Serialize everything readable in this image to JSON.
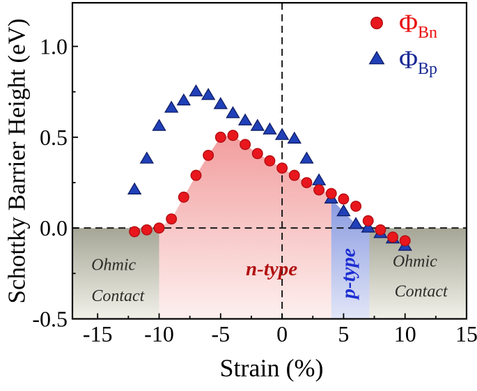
{
  "chart_data": {
    "type": "scatter",
    "title": "",
    "xlabel": "Strain (%)",
    "ylabel": "Schottky Barrier Height (eV)",
    "xlim": [
      -17.05,
      15
    ],
    "ylim": [
      -0.5,
      1.24
    ],
    "grid": false,
    "legend_position": "top-right",
    "x": [
      -12,
      -11,
      -10,
      -9,
      -8,
      -7,
      -6,
      -5,
      -4,
      -3,
      -2,
      -1,
      0,
      1,
      2,
      3,
      4,
      5,
      6,
      7,
      8,
      9,
      10
    ],
    "series": [
      {
        "name": "Phi_Bn",
        "legend_symbol": "Φ",
        "legend_subscript": "Bn",
        "marker": "circle",
        "fill": "#e8171d",
        "edge": "#b00b10",
        "legend_text_color": "#e8100f",
        "values": [
          -0.02,
          -0.01,
          0.0,
          0.05,
          0.17,
          0.29,
          0.4,
          0.5,
          0.51,
          0.46,
          0.41,
          0.37,
          0.33,
          0.29,
          0.25,
          0.21,
          0.19,
          0.16,
          0.12,
          0.04,
          -0.01,
          -0.05,
          -0.07
        ]
      },
      {
        "name": "Phi_Bp",
        "legend_symbol": "Φ",
        "legend_subscript": "Bp",
        "marker": "triangle",
        "fill": "#2040b8",
        "edge": "#0e1d66",
        "legend_text_color": "#1b2b96",
        "values": [
          0.21,
          0.38,
          0.56,
          0.66,
          0.7,
          0.75,
          0.73,
          0.68,
          0.63,
          0.59,
          0.56,
          0.54,
          0.51,
          0.49,
          0.38,
          0.26,
          0.16,
          0.09,
          0.02,
          0.0,
          -0.03,
          -0.06,
          -0.1
        ]
      }
    ],
    "x_axis": {
      "major_ticks": [
        -15,
        -10,
        -5,
        0,
        5,
        10,
        15
      ],
      "major_labels": [
        "-15",
        "-10",
        "-5",
        "0",
        "5",
        "10",
        "15"
      ],
      "minor_ticks": [
        -12.5,
        -7.5,
        -2.5,
        2.5,
        7.5,
        12.5
      ]
    },
    "y_axis": {
      "major_ticks": [
        1.0,
        0.5,
        0.0,
        -0.5
      ],
      "major_labels": [
        "1.0",
        "0.5",
        "0.0",
        "-0.5"
      ],
      "minor_ticks": [
        0.75,
        0.25,
        -0.25
      ]
    },
    "reference_lines": [
      {
        "axis": "x",
        "value": 0
      },
      {
        "axis": "y",
        "value": 0
      }
    ],
    "regions": [
      {
        "id": "ohmic-left",
        "kind": "rect",
        "x0": -17.05,
        "x1": -10,
        "y0": -0.5,
        "y1": 0,
        "fill_top": "#a6a697",
        "fill_bottom": "#f1f1e9"
      },
      {
        "id": "n-type",
        "kind": "under-curve",
        "series": 0,
        "from": -10,
        "to": 4,
        "extra": [
          [
            4,
            -0.5
          ],
          [
            -10,
            -0.5
          ]
        ],
        "fill_top": "#f29e9e",
        "fill_bottom": "#fdf0ef"
      },
      {
        "id": "p-type",
        "kind": "under-curve",
        "series": 1,
        "from": 4,
        "to": 7,
        "extra": [
          [
            7.1,
            0
          ],
          [
            7.1,
            -0.5
          ],
          [
            4,
            -0.5
          ]
        ],
        "fill_top": "#8899e0",
        "fill_bottom": "#e2e6f7"
      },
      {
        "id": "ohmic-right",
        "kind": "rect",
        "x0": 7.1,
        "x1": 15,
        "y0": -0.5,
        "y1": 0,
        "fill_top": "#a6a697",
        "fill_bottom": "#f1f1e9"
      }
    ],
    "annotations": [
      {
        "id": "n-type-label",
        "text": "n-type",
        "x": -0.85,
        "y": -0.225,
        "color": "#b11111",
        "size": 29,
        "bold": true,
        "italic": true,
        "rotate": 0
      },
      {
        "id": "p-type-label",
        "text": "p-type",
        "x": 5.4,
        "y": -0.25,
        "color": "#1c2ed2",
        "size": 29,
        "bold": true,
        "italic": true,
        "rotate": -90
      },
      {
        "id": "ohmic-left-line1",
        "text": "Ohmic",
        "x": -13.7,
        "y": -0.205,
        "color": "#2c2c28",
        "size": 24,
        "bold": false,
        "italic": true,
        "rotate": 0
      },
      {
        "id": "ohmic-left-line2",
        "text": "Contact",
        "x": -13.35,
        "y": -0.375,
        "color": "#2c2c28",
        "size": 24,
        "bold": false,
        "italic": true,
        "rotate": 0
      },
      {
        "id": "ohmic-right-line1",
        "text": "Ohmic",
        "x": 10.8,
        "y": -0.185,
        "color": "#2c2c28",
        "size": 24,
        "bold": false,
        "italic": true,
        "rotate": 0
      },
      {
        "id": "ohmic-right-line2",
        "text": "Contact",
        "x": 11.3,
        "y": -0.35,
        "color": "#2c2c28",
        "size": 24,
        "bold": false,
        "italic": true,
        "rotate": 0
      }
    ],
    "style": {
      "axis_color": "#000000",
      "dash_color": "#1a1a1a",
      "background": "#ffffff"
    }
  }
}
